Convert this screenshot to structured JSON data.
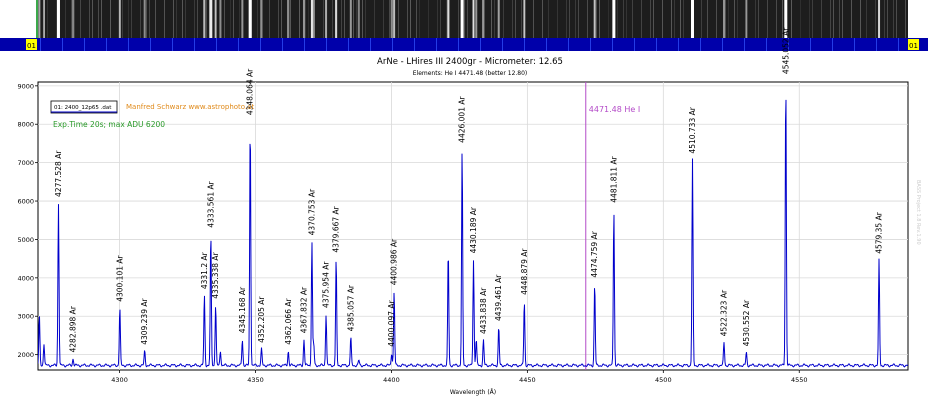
{
  "strip": {
    "left_label": "01",
    "right_label": "01",
    "background_color": "#1d1d1d",
    "bar_color": "#0000aa",
    "tag_color": "#ffff00"
  },
  "chart_data": {
    "type": "line",
    "title": "ArNe - LHires III 2400gr - Micrometer: 12.65",
    "subtitle": "Elements: He I 4471.48 (better 12.80)",
    "xlabel": "Wavelength (Å)",
    "ylabel": "",
    "xlim": [
      4270,
      4590
    ],
    "ylim": [
      1600,
      9100
    ],
    "xticks": [
      4300,
      4350,
      4400,
      4450,
      4500,
      4550
    ],
    "yticks": [
      2000,
      3000,
      4000,
      5000,
      6000,
      7000,
      8000,
      9000
    ],
    "grid": true,
    "line_color": "#0000cc",
    "baseline": 1720,
    "legend": {
      "file": "01: 2400_12p65 .dat",
      "credit": "Manfred Schwarz  www.astrophoto.at",
      "exposure": "Exp.Time 20s; max ADU 6200"
    },
    "credit_color": "#e08a1a",
    "exposure_color": "#2a9a2a",
    "side_note": "BASS Project 1.8 Rev.1.90",
    "marker": {
      "x": 4471.48,
      "label": "4471.48 He I",
      "color": "#b44bc8"
    },
    "peaks": [
      {
        "x": 4270.5,
        "y": 3000
      },
      {
        "x": 4272.2,
        "y": 2300
      },
      {
        "x": 4277.528,
        "y": 5950,
        "label": "4277.528 Ar"
      },
      {
        "x": 4282.898,
        "y": 1900,
        "label": "4282.898 Ar"
      },
      {
        "x": 4300.101,
        "y": 3220,
        "label": "4300.101 Ar"
      },
      {
        "x": 4309.239,
        "y": 2100,
        "label": "4309.239 Ar"
      },
      {
        "x": 4331.2,
        "y": 3550,
        "label": "4331.2 Ar"
      },
      {
        "x": 4333.561,
        "y": 5150,
        "label": "4333.561 Ar"
      },
      {
        "x": 4335.338,
        "y": 3300,
        "label": "4335.338 Ar"
      },
      {
        "x": 4337.1,
        "y": 2100
      },
      {
        "x": 4345.168,
        "y": 2400,
        "label": "4345.168 Ar"
      },
      {
        "x": 4348.064,
        "y": 8080,
        "label": "4348.064 Ar"
      },
      {
        "x": 4352.205,
        "y": 2150,
        "label": "4352.205 Ar"
      },
      {
        "x": 4362.066,
        "y": 2100,
        "label": "4362.066 Ar"
      },
      {
        "x": 4367.832,
        "y": 2400,
        "label": "4367.832 Ar"
      },
      {
        "x": 4370.753,
        "y": 4950,
        "label": "4370.753 Ar"
      },
      {
        "x": 4371.4,
        "y": 2300
      },
      {
        "x": 4375.954,
        "y": 3060,
        "label": "4375.954 Ar"
      },
      {
        "x": 4379.667,
        "y": 4500,
        "label": "4379.667 Ar"
      },
      {
        "x": 4385.057,
        "y": 2450,
        "label": "4385.057 Ar"
      },
      {
        "x": 4388.0,
        "y": 1850
      },
      {
        "x": 4400.097,
        "y": 2050,
        "label": "4400.097 Ar"
      },
      {
        "x": 4400.986,
        "y": 3650,
        "label": "4400.986 Ar"
      },
      {
        "x": 4420.9,
        "y": 4720
      },
      {
        "x": 4426.001,
        "y": 7360,
        "label": "4426.001 Ar"
      },
      {
        "x": 4430.189,
        "y": 4480,
        "label": "4430.189 Ar"
      },
      {
        "x": 4431.2,
        "y": 2400
      },
      {
        "x": 4433.838,
        "y": 2380,
        "label": "4433.838 Ar"
      },
      {
        "x": 4439.461,
        "y": 2720,
        "label": "4439.461 Ar"
      },
      {
        "x": 4448.879,
        "y": 3400,
        "label": "4448.879 Ar"
      },
      {
        "x": 4474.759,
        "y": 3850,
        "label": "4474.759 Ar"
      },
      {
        "x": 4481.811,
        "y": 5800,
        "label": "4481.811 Ar"
      },
      {
        "x": 4510.733,
        "y": 7080,
        "label": "4510.733 Ar"
      },
      {
        "x": 4522.323,
        "y": 2320,
        "label": "4522.323 Ar"
      },
      {
        "x": 4530.552,
        "y": 2060,
        "label": "4530.552 Ar"
      },
      {
        "x": 4545.052,
        "y": 9150,
        "label": "4545.052 Ar"
      },
      {
        "x": 4579.35,
        "y": 4470,
        "label": "4579.35 Ar"
      }
    ]
  }
}
